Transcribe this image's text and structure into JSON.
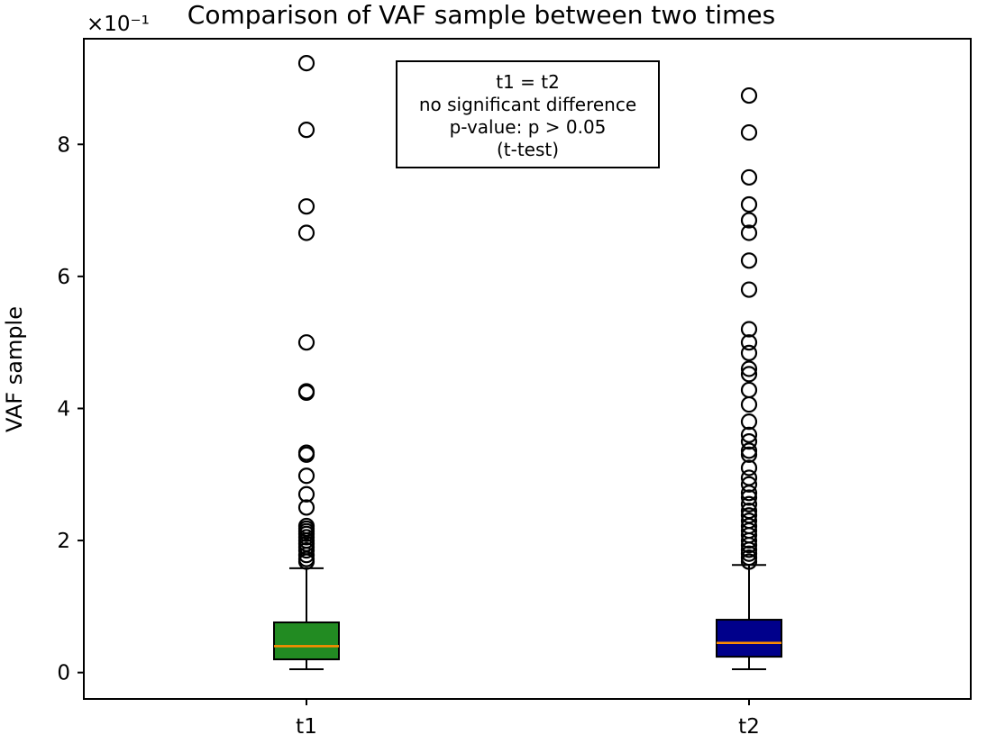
{
  "chart_data": {
    "type": "box",
    "title": "Comparison of VAF sample between two times",
    "ylabel": "VAF sample",
    "xlabel": "",
    "scale_label": "×10⁻¹",
    "ylim": [
      -0.04,
      0.96
    ],
    "yticks": [
      0,
      2,
      4,
      6,
      8
    ],
    "categories": [
      "t1",
      "t2"
    ],
    "grid": false,
    "series": [
      {
        "category": "t1",
        "color": "#228b22",
        "whisker_low": 0.005,
        "q1": 0.02,
        "median": 0.04,
        "q3": 0.076,
        "whisker_high": 0.158,
        "outliers": [
          0.923,
          0.822,
          0.706,
          0.666,
          0.5,
          0.426,
          0.424,
          0.333,
          0.33,
          0.298,
          0.27,
          0.25,
          0.222,
          0.218,
          0.214,
          0.21,
          0.205,
          0.2,
          0.195,
          0.19,
          0.185,
          0.178,
          0.172,
          0.168
        ]
      },
      {
        "category": "t2",
        "color": "#00008b",
        "whisker_low": 0.005,
        "q1": 0.024,
        "median": 0.045,
        "q3": 0.08,
        "whisker_high": 0.163,
        "outliers": [
          0.874,
          0.818,
          0.75,
          0.709,
          0.685,
          0.666,
          0.624,
          0.58,
          0.52,
          0.5,
          0.484,
          0.46,
          0.452,
          0.428,
          0.406,
          0.38,
          0.36,
          0.35,
          0.336,
          0.33,
          0.31,
          0.295,
          0.285,
          0.272,
          0.265,
          0.255,
          0.245,
          0.238,
          0.23,
          0.222,
          0.215,
          0.208,
          0.2,
          0.193,
          0.186,
          0.18,
          0.174,
          0.168
        ]
      }
    ],
    "annotation": {
      "lines": [
        "t1 = t2",
        "no significant difference",
        "p-value: p > 0.05",
        "(t-test)"
      ]
    }
  }
}
